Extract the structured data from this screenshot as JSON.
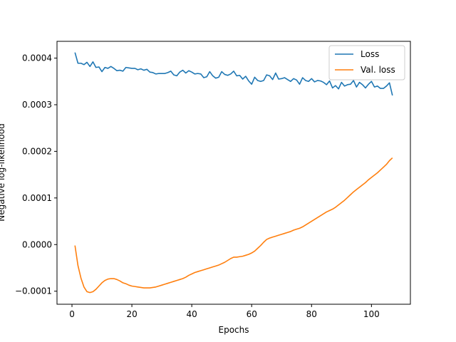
{
  "chart_data": {
    "type": "line",
    "title": "",
    "xlabel": "Epochs",
    "ylabel": "Negative log-likelihood",
    "xlim": [
      -5,
      113
    ],
    "ylim": [
      -0.000128,
      0.000436
    ],
    "xticks": [
      0,
      20,
      40,
      60,
      80,
      100
    ],
    "xtick_labels": [
      "0",
      "20",
      "40",
      "60",
      "80",
      "100"
    ],
    "yticks": [
      -0.0001,
      0.0,
      0.0001,
      0.0002,
      0.0003,
      0.0004
    ],
    "ytick_labels": [
      "−0.0001",
      "0.0000",
      "0.0001",
      "0.0002",
      "0.0003",
      "0.0004"
    ],
    "grid": false,
    "legend": {
      "position": "top-right",
      "entries": [
        "Loss",
        "Val. loss"
      ]
    },
    "x": [
      1,
      2,
      3,
      4,
      5,
      6,
      7,
      8,
      9,
      10,
      11,
      12,
      13,
      14,
      15,
      16,
      17,
      18,
      19,
      20,
      21,
      22,
      23,
      24,
      25,
      26,
      27,
      28,
      29,
      30,
      31,
      32,
      33,
      34,
      35,
      36,
      37,
      38,
      39,
      40,
      41,
      42,
      43,
      44,
      45,
      46,
      47,
      48,
      49,
      50,
      51,
      52,
      53,
      54,
      55,
      56,
      57,
      58,
      59,
      60,
      61,
      62,
      63,
      64,
      65,
      66,
      67,
      68,
      69,
      70,
      71,
      72,
      73,
      74,
      75,
      76,
      77,
      78,
      79,
      80,
      81,
      82,
      83,
      84,
      85,
      86,
      87,
      88,
      89,
      90,
      91,
      92,
      93,
      94,
      95,
      96,
      97,
      98,
      99,
      100,
      101,
      102,
      103,
      104,
      105,
      106,
      107
    ],
    "series": [
      {
        "name": "Loss",
        "color": "#1f77b4",
        "values": [
          0.000412,
          0.000389,
          0.000389,
          0.000386,
          0.000391,
          0.000382,
          0.000392,
          0.00038,
          0.000381,
          0.000371,
          0.00038,
          0.000378,
          0.000382,
          0.000378,
          0.000373,
          0.000374,
          0.000372,
          0.00038,
          0.000379,
          0.000378,
          0.000378,
          0.000375,
          0.000377,
          0.000374,
          0.000376,
          0.00037,
          0.000369,
          0.000366,
          0.000367,
          0.000367,
          0.000367,
          0.000369,
          0.000372,
          0.000364,
          0.000362,
          0.00037,
          0.000374,
          0.000368,
          0.000373,
          0.00037,
          0.000366,
          0.000367,
          0.000366,
          0.000358,
          0.00036,
          0.000371,
          0.000362,
          0.000357,
          0.000359,
          0.000371,
          0.000365,
          0.000363,
          0.000366,
          0.000372,
          0.000362,
          0.000363,
          0.000355,
          0.000361,
          0.000351,
          0.000344,
          0.000359,
          0.000352,
          0.00035,
          0.000352,
          0.000364,
          0.000362,
          0.000354,
          0.000368,
          0.000355,
          0.000356,
          0.000358,
          0.000354,
          0.00035,
          0.000356,
          0.000353,
          0.000344,
          0.000358,
          0.000352,
          0.00035,
          0.000356,
          0.000349,
          0.000352,
          0.000351,
          0.000348,
          0.000343,
          0.000351,
          0.000336,
          0.000341,
          0.000334,
          0.000348,
          0.00034,
          0.000343,
          0.000344,
          0.000352,
          0.000338,
          0.000348,
          0.000343,
          0.000336,
          0.000344,
          0.00035,
          0.000338,
          0.00034,
          0.000335,
          0.000335,
          0.00034,
          0.000347,
          0.00032
        ]
      },
      {
        "name": "Val. loss",
        "color": "#ff7f0e",
        "values": [
          -2e-06,
          -4.5e-05,
          -7.2e-05,
          -9.1e-05,
          -0.000101,
          -0.000103,
          -0.000101,
          -9.6e-05,
          -8.9e-05,
          -8.2e-05,
          -7.7e-05,
          -7.4e-05,
          -7.3e-05,
          -7.3e-05,
          -7.5e-05,
          -7.8e-05,
          -8.2e-05,
          -8.4e-05,
          -8.7e-05,
          -8.9e-05,
          -9e-05,
          -9.1e-05,
          -9.2e-05,
          -9.3e-05,
          -9.3e-05,
          -9.3e-05,
          -9.2e-05,
          -9.1e-05,
          -8.9e-05,
          -8.7e-05,
          -8.5e-05,
          -8.3e-05,
          -8.1e-05,
          -7.9e-05,
          -7.7e-05,
          -7.5e-05,
          -7.3e-05,
          -7e-05,
          -6.6e-05,
          -6.3e-05,
          -6e-05,
          -5.8e-05,
          -5.6e-05,
          -5.4e-05,
          -5.2e-05,
          -5e-05,
          -4.8e-05,
          -4.6e-05,
          -4.4e-05,
          -4.1e-05,
          -3.8e-05,
          -3.4e-05,
          -3e-05,
          -2.7e-05,
          -2.7e-05,
          -2.6e-05,
          -2.5e-05,
          -2.3e-05,
          -2.1e-05,
          -1.8e-05,
          -1.4e-05,
          -8e-06,
          -2e-06,
          5e-06,
          1.1e-05,
          1.4e-05,
          1.6e-05,
          1.8e-05,
          2e-05,
          2.2e-05,
          2.4e-05,
          2.6e-05,
          2.8e-05,
          3.1e-05,
          3.3e-05,
          3.5e-05,
          3.8e-05,
          4.2e-05,
          4.6e-05,
          5e-05,
          5.4e-05,
          5.8e-05,
          6.2e-05,
          6.6e-05,
          7e-05,
          7.3e-05,
          7.6e-05,
          8e-05,
          8.5e-05,
          9e-05,
          9.5e-05,
          0.000101,
          0.000107,
          0.000113,
          0.000118,
          0.000123,
          0.000128,
          0.000133,
          0.000139,
          0.000144,
          0.000149,
          0.000154,
          0.00016,
          0.000166,
          0.000172,
          0.00018,
          0.000186
        ]
      }
    ]
  }
}
